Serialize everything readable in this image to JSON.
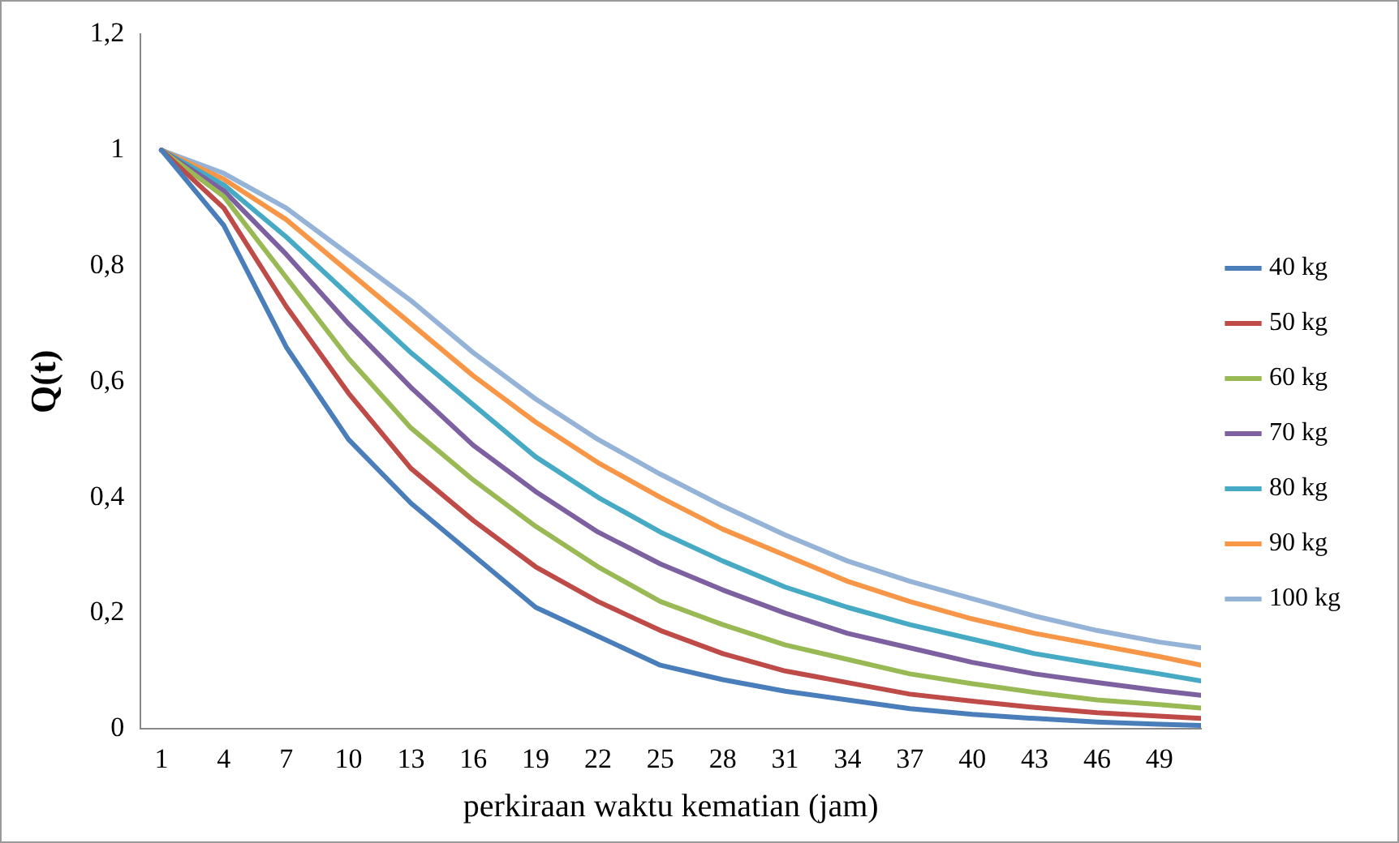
{
  "chart_data": {
    "type": "line",
    "xlabel": "perkiraan waktu kematian (jam)",
    "ylabel": "Q(t)",
    "xlim": [
      0,
      51
    ],
    "xticks": [
      1,
      4,
      7,
      10,
      13,
      16,
      19,
      22,
      25,
      28,
      31,
      34,
      37,
      40,
      43,
      46,
      49
    ],
    "ylim": [
      0,
      1.2
    ],
    "yticks": [
      {
        "value": 0,
        "label": "0"
      },
      {
        "value": 0.2,
        "label": "0,2"
      },
      {
        "value": 0.4,
        "label": "0,4"
      },
      {
        "value": 0.6,
        "label": "0,6"
      },
      {
        "value": 0.8,
        "label": "0,8"
      },
      {
        "value": 1,
        "label": "1"
      },
      {
        "value": 1.2,
        "label": "1,2"
      }
    ],
    "x": [
      1,
      4,
      7,
      10,
      13,
      16,
      19,
      22,
      25,
      28,
      31,
      34,
      37,
      40,
      43,
      46,
      49,
      51
    ],
    "grid": false,
    "legend": "right",
    "marker": "none",
    "line_style": "solid",
    "series": [
      {
        "name": "40 kg",
        "color": "#4a7ebb",
        "values": [
          1,
          0.87,
          0.66,
          0.5,
          0.39,
          0.3,
          0.21,
          0.16,
          0.11,
          0.085,
          0.065,
          0.05,
          0.035,
          0.025,
          0.018,
          0.012,
          0.008,
          0.006
        ]
      },
      {
        "name": "50 kg",
        "color": "#be4b48",
        "values": [
          1,
          0.9,
          0.73,
          0.58,
          0.45,
          0.36,
          0.28,
          0.22,
          0.17,
          0.13,
          0.1,
          0.08,
          0.06,
          0.048,
          0.037,
          0.028,
          0.022,
          0.018
        ]
      },
      {
        "name": "60 kg",
        "color": "#98b954",
        "values": [
          1,
          0.92,
          0.78,
          0.64,
          0.52,
          0.43,
          0.35,
          0.28,
          0.22,
          0.18,
          0.145,
          0.12,
          0.095,
          0.078,
          0.063,
          0.05,
          0.042,
          0.036
        ]
      },
      {
        "name": "70 kg",
        "color": "#7d60a0",
        "values": [
          1,
          0.93,
          0.82,
          0.7,
          0.59,
          0.49,
          0.41,
          0.34,
          0.285,
          0.24,
          0.2,
          0.165,
          0.14,
          0.115,
          0.095,
          0.08,
          0.066,
          0.058
        ]
      },
      {
        "name": "80 kg",
        "color": "#46aac5",
        "values": [
          1,
          0.94,
          0.85,
          0.75,
          0.65,
          0.56,
          0.47,
          0.4,
          0.34,
          0.29,
          0.245,
          0.21,
          0.18,
          0.155,
          0.13,
          0.112,
          0.095,
          0.083
        ]
      },
      {
        "name": "90 kg",
        "color": "#f79646",
        "values": [
          1,
          0.95,
          0.88,
          0.79,
          0.7,
          0.61,
          0.53,
          0.46,
          0.4,
          0.345,
          0.3,
          0.255,
          0.22,
          0.19,
          0.165,
          0.145,
          0.125,
          0.11
        ]
      },
      {
        "name": "100 kg",
        "color": "#95b3d7",
        "values": [
          1,
          0.96,
          0.9,
          0.82,
          0.74,
          0.65,
          0.57,
          0.5,
          0.44,
          0.385,
          0.335,
          0.29,
          0.255,
          0.225,
          0.195,
          0.17,
          0.15,
          0.14
        ]
      }
    ]
  }
}
